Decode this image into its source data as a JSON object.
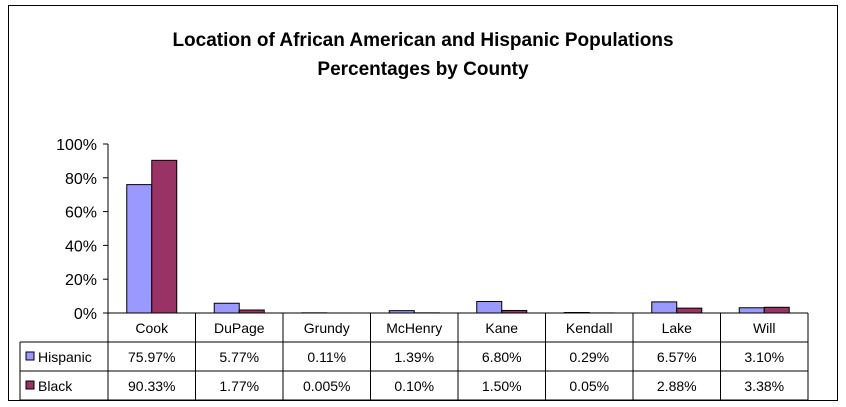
{
  "chart_data": {
    "type": "bar",
    "title": "Location of African American and Hispanic Populations",
    "subtitle": "Percentages by County",
    "categories": [
      "Cook",
      "DuPage",
      "Grundy",
      "McHenry",
      "Kane",
      "Kendall",
      "Lake",
      "Will"
    ],
    "series": [
      {
        "name": "Hispanic",
        "color": "#9999ff",
        "values": [
          75.97,
          5.77,
          0.11,
          1.39,
          6.8,
          0.29,
          6.57,
          3.1
        ],
        "labels": [
          "75.97%",
          "5.77%",
          "0.11%",
          "1.39%",
          "6.80%",
          "0.29%",
          "6.57%",
          "3.10%"
        ]
      },
      {
        "name": "Black",
        "color": "#993366",
        "values": [
          90.33,
          1.77,
          0.005,
          0.1,
          1.5,
          0.05,
          2.88,
          3.38
        ],
        "labels": [
          "90.33%",
          "1.77%",
          "0.005%",
          "0.10%",
          "1.50%",
          "0.05%",
          "2.88%",
          "3.38%"
        ]
      }
    ],
    "ylim": [
      0,
      100
    ],
    "yticks": [
      "0%",
      "20%",
      "40%",
      "60%",
      "80%",
      "100%"
    ],
    "grid": false,
    "legend": "data-table"
  }
}
